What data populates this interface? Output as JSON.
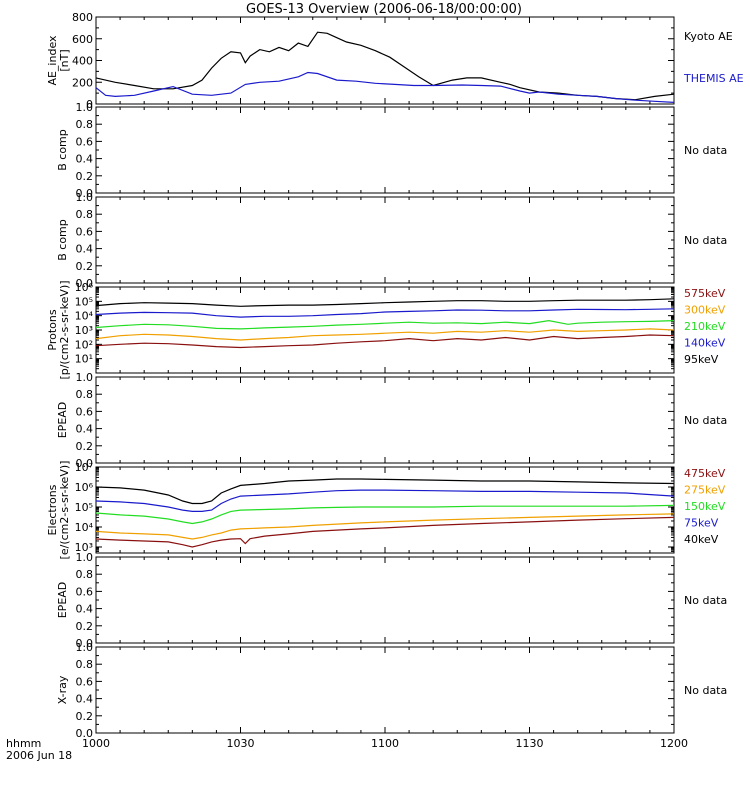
{
  "title": "GOES-13 Overview (2006-06-18/00:00:00)",
  "time_axis": {
    "row1": "hhmm",
    "row2": "2006 Jun 18",
    "ticks": [
      "1000",
      "1030",
      "1100",
      "1130",
      "1200"
    ],
    "tick_minutes": [
      0,
      30,
      60,
      90,
      120
    ],
    "range_minutes": [
      0,
      120
    ]
  },
  "colors": {
    "black": "#000000",
    "blue": "#1a1acc",
    "green": "#22dd22",
    "orange": "#f0a000",
    "maroon": "#8a1010"
  },
  "chart_data": [
    {
      "type": "line",
      "panel": "ae",
      "ylabel": [
        "AE_index",
        "[nT]"
      ],
      "ylim": [
        0,
        800
      ],
      "yscale": "linear",
      "yticks": [
        "0",
        "200",
        "400",
        "600",
        "800"
      ],
      "ytick_values": [
        0,
        200,
        400,
        600,
        800
      ],
      "series": [
        {
          "name": "Kyoto AE",
          "color": "#000000",
          "x": [
            0,
            4,
            8,
            12,
            16,
            20,
            22,
            24,
            26,
            28,
            30,
            31,
            32,
            34,
            36,
            38,
            40,
            42,
            44,
            46,
            48,
            50,
            52,
            55,
            58,
            61,
            64,
            67,
            70,
            74,
            77,
            80,
            84,
            86,
            88,
            92,
            96,
            100,
            104,
            108,
            112,
            116,
            120
          ],
          "y": [
            240,
            200,
            170,
            140,
            140,
            170,
            220,
            330,
            420,
            480,
            470,
            380,
            440,
            500,
            480,
            520,
            490,
            560,
            530,
            660,
            650,
            610,
            570,
            540,
            490,
            430,
            340,
            250,
            170,
            220,
            240,
            240,
            200,
            180,
            150,
            110,
            100,
            80,
            70,
            50,
            40,
            70,
            90
          ]
        },
        {
          "name": "THEMIS AE",
          "color": "#1a1acc",
          "x": [
            0,
            2,
            4,
            8,
            12,
            16,
            20,
            24,
            28,
            31,
            34,
            38,
            42,
            44,
            46,
            50,
            54,
            58,
            62,
            66,
            70,
            76,
            80,
            84,
            88,
            90,
            92,
            96,
            100,
            104,
            108,
            112,
            116,
            120
          ],
          "y": [
            150,
            80,
            70,
            80,
            120,
            160,
            90,
            80,
            100,
            180,
            200,
            210,
            250,
            290,
            280,
            220,
            210,
            190,
            180,
            170,
            170,
            175,
            170,
            165,
            120,
            100,
            110,
            90,
            80,
            70,
            50,
            35,
            25,
            15
          ]
        }
      ]
    },
    {
      "type": "line",
      "panel": "b1",
      "ylabel": [
        "B comp"
      ],
      "ylim": [
        0,
        1
      ],
      "yscale": "linear",
      "yticks": [
        "0.0",
        "0.2",
        "0.4",
        "0.6",
        "0.8",
        "1.0"
      ],
      "ytick_values": [
        0,
        0.2,
        0.4,
        0.6,
        0.8,
        1.0
      ],
      "note": "No data",
      "series": []
    },
    {
      "type": "line",
      "panel": "b2",
      "ylabel": [
        "B comp"
      ],
      "ylim": [
        0,
        1
      ],
      "yscale": "linear",
      "yticks": [
        "0.0",
        "0.2",
        "0.4",
        "0.6",
        "0.8",
        "1.0"
      ],
      "ytick_values": [
        0,
        0.2,
        0.4,
        0.6,
        0.8,
        1.0
      ],
      "note": "No data",
      "series": []
    },
    {
      "type": "line",
      "panel": "protons",
      "ylabel": [
        "Protons",
        "[p/(cm2-s-sr-keV)]"
      ],
      "ylim": [
        1,
        1000000
      ],
      "yscale": "log",
      "yticks": [
        "10¹",
        "10²",
        "10³",
        "10⁴",
        "10⁵",
        "10⁶"
      ],
      "ytick_values": [
        10,
        100,
        1000,
        10000,
        100000,
        1000000
      ],
      "series": [
        {
          "name": "95keV",
          "color": "#000000",
          "x": [
            0,
            5,
            10,
            15,
            20,
            25,
            30,
            35,
            40,
            45,
            50,
            55,
            60,
            65,
            70,
            75,
            80,
            85,
            90,
            95,
            100,
            105,
            110,
            115,
            120
          ],
          "y": [
            50000,
            70000,
            80000,
            75000,
            70000,
            55000,
            45000,
            50000,
            55000,
            55000,
            60000,
            70000,
            80000,
            90000,
            100000,
            110000,
            110000,
            100000,
            100000,
            110000,
            120000,
            120000,
            120000,
            130000,
            150000
          ]
        },
        {
          "name": "140keV",
          "color": "#1a1acc",
          "x": [
            0,
            5,
            10,
            15,
            20,
            25,
            30,
            35,
            40,
            45,
            50,
            55,
            60,
            65,
            70,
            75,
            80,
            85,
            90,
            95,
            100,
            105,
            110,
            115,
            120
          ],
          "y": [
            12000,
            15000,
            17000,
            16000,
            15000,
            10000,
            8000,
            9000,
            9000,
            10000,
            12000,
            14000,
            18000,
            20000,
            22000,
            25000,
            24000,
            22000,
            22000,
            25000,
            28000,
            27000,
            26000,
            28000,
            30000
          ]
        },
        {
          "name": "210keV",
          "color": "#22dd22",
          "x": [
            0,
            5,
            10,
            15,
            20,
            25,
            30,
            35,
            40,
            45,
            50,
            55,
            60,
            65,
            70,
            75,
            80,
            85,
            90,
            94,
            98,
            100,
            105,
            110,
            115,
            120
          ],
          "y": [
            1500,
            2000,
            2500,
            2300,
            1800,
            1300,
            1200,
            1400,
            1600,
            1800,
            2200,
            2500,
            3000,
            3500,
            3000,
            3200,
            2800,
            3500,
            2800,
            4500,
            2500,
            3000,
            3500,
            3800,
            4000,
            4500
          ]
        },
        {
          "name": "300keV",
          "color": "#f0a000",
          "x": [
            0,
            5,
            10,
            15,
            20,
            25,
            30,
            35,
            40,
            45,
            50,
            55,
            60,
            65,
            70,
            75,
            80,
            85,
            90,
            95,
            100,
            105,
            110,
            115,
            120
          ],
          "y": [
            250,
            400,
            500,
            450,
            350,
            250,
            200,
            250,
            300,
            400,
            450,
            500,
            600,
            700,
            600,
            800,
            700,
            900,
            700,
            1000,
            800,
            900,
            1000,
            1200,
            1000
          ]
        },
        {
          "name": "575keV",
          "color": "#8a1010",
          "x": [
            0,
            5,
            10,
            15,
            20,
            25,
            30,
            35,
            40,
            45,
            50,
            55,
            60,
            65,
            70,
            75,
            80,
            85,
            90,
            95,
            100,
            105,
            110,
            115,
            120
          ],
          "y": [
            80,
            100,
            120,
            110,
            90,
            70,
            60,
            70,
            80,
            90,
            120,
            150,
            180,
            250,
            180,
            250,
            200,
            300,
            200,
            350,
            250,
            300,
            350,
            450,
            400
          ]
        }
      ]
    },
    {
      "type": "line",
      "panel": "epead1",
      "ylabel": [
        "EPEAD"
      ],
      "ylim": [
        0,
        1
      ],
      "yscale": "linear",
      "yticks": [
        "0.0",
        "0.2",
        "0.4",
        "0.6",
        "0.8",
        "1.0"
      ],
      "ytick_values": [
        0,
        0.2,
        0.4,
        0.6,
        0.8,
        1.0
      ],
      "note": "No data",
      "series": []
    },
    {
      "type": "line",
      "panel": "electrons",
      "ylabel": [
        "Electrons",
        "[e/(cm2-s-sr-keV)]"
      ],
      "ylim": [
        500,
        10000000
      ],
      "yscale": "log",
      "yticks": [
        "10³",
        "10⁴",
        "10⁵",
        "10⁶",
        "10⁷"
      ],
      "ytick_values": [
        1000,
        10000,
        100000,
        1000000,
        10000000
      ],
      "series": [
        {
          "name": "40keV",
          "color": "#000000",
          "x": [
            0,
            5,
            10,
            15,
            18,
            20,
            22,
            24,
            26,
            28,
            30,
            35,
            40,
            45,
            50,
            55,
            60,
            70,
            80,
            90,
            100,
            110,
            120
          ],
          "y": [
            1000000,
            900000,
            700000,
            400000,
            200000,
            150000,
            150000,
            200000,
            500000,
            800000,
            1200000,
            1500000,
            2000000,
            2200000,
            2500000,
            2500000,
            2400000,
            2200000,
            2000000,
            2000000,
            1800000,
            1600000,
            1500000
          ]
        },
        {
          "name": "75keV",
          "color": "#1a1acc",
          "x": [
            0,
            5,
            10,
            15,
            18,
            20,
            22,
            24,
            26,
            28,
            30,
            35,
            40,
            45,
            50,
            55,
            60,
            70,
            80,
            90,
            100,
            110,
            120
          ],
          "y": [
            200000,
            180000,
            150000,
            100000,
            70000,
            60000,
            60000,
            70000,
            150000,
            250000,
            350000,
            400000,
            450000,
            550000,
            650000,
            700000,
            700000,
            650000,
            600000,
            600000,
            550000,
            500000,
            350000
          ]
        },
        {
          "name": "150keV",
          "color": "#22dd22",
          "x": [
            0,
            5,
            10,
            15,
            18,
            20,
            22,
            24,
            26,
            28,
            30,
            35,
            40,
            45,
            50,
            55,
            60,
            70,
            80,
            90,
            100,
            110,
            120
          ],
          "y": [
            50000,
            40000,
            35000,
            25000,
            18000,
            15000,
            18000,
            25000,
            40000,
            60000,
            70000,
            75000,
            80000,
            90000,
            95000,
            100000,
            100000,
            100000,
            110000,
            110000,
            110000,
            110000,
            120000
          ]
        },
        {
          "name": "275keV",
          "color": "#f0a000",
          "x": [
            0,
            5,
            10,
            15,
            18,
            20,
            22,
            24,
            26,
            28,
            30,
            35,
            40,
            45,
            50,
            55,
            60,
            70,
            80,
            90,
            100,
            110,
            120
          ],
          "y": [
            6000,
            5000,
            4500,
            4000,
            3000,
            2500,
            3000,
            4000,
            5000,
            7000,
            8000,
            9000,
            10000,
            12000,
            14000,
            16000,
            18000,
            22000,
            26000,
            30000,
            35000,
            40000,
            45000
          ]
        },
        {
          "name": "475keV",
          "color": "#8a1010",
          "x": [
            0,
            5,
            10,
            15,
            18,
            20,
            22,
            24,
            26,
            28,
            30,
            31,
            32,
            35,
            40,
            45,
            50,
            55,
            60,
            70,
            80,
            90,
            100,
            110,
            120
          ],
          "y": [
            2500,
            2200,
            2000,
            1800,
            1300,
            1000,
            1300,
            1800,
            2200,
            2500,
            2600,
            1500,
            2600,
            3500,
            4500,
            6000,
            7000,
            8000,
            9000,
            12000,
            15000,
            18000,
            22000,
            26000,
            30000
          ]
        }
      ]
    },
    {
      "type": "line",
      "panel": "epead2",
      "ylabel": [
        "EPEAD"
      ],
      "ylim": [
        0,
        1
      ],
      "yscale": "linear",
      "yticks": [
        "0.0",
        "0.2",
        "0.4",
        "0.6",
        "0.8",
        "1.0"
      ],
      "ytick_values": [
        0,
        0.2,
        0.4,
        0.6,
        0.8,
        1.0
      ],
      "note": "No data",
      "series": []
    },
    {
      "type": "line",
      "panel": "xray",
      "ylabel": [
        "X-ray"
      ],
      "ylim": [
        0,
        1
      ],
      "yscale": "linear",
      "yticks": [
        "0.0",
        "0.2",
        "0.4",
        "0.6",
        "0.8",
        "1.0"
      ],
      "ytick_values": [
        0,
        0.2,
        0.4,
        0.6,
        0.8,
        1.0
      ],
      "note": "No data",
      "series": []
    }
  ]
}
